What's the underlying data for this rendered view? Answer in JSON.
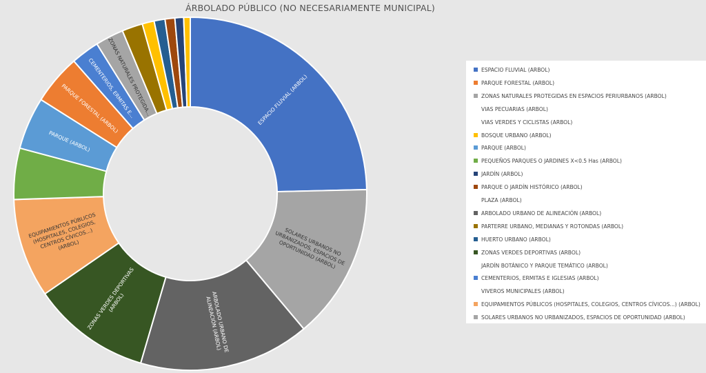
{
  "chart_data": {
    "type": "pie",
    "variant": "donut",
    "title": "ÁRBOLADO PÚBLICO (NO NECESARIAMENTE MUNICIPAL)",
    "legend_position": "right",
    "slices": [
      {
        "name": "ESPACIO FLUVIAL (ARBOL)",
        "value": 24.7,
        "color": "#4472c4",
        "label": "ESPACIO FLUVIAL (ARBOL)",
        "label_color": "#ffffff"
      },
      {
        "name": "SOLARES URBANOS NO URBANIZADOS, ESPACIOS DE OPORTUNIDAD (ARBOL)",
        "value": 14.3,
        "color": "#a5a5a5",
        "label": "SOLARES URBANOS NO URBANIZADOS, ESPACIOS DE OPORTUNIDAD (ARBOL)",
        "label_color": "#333333"
      },
      {
        "name": "ARBOLADO URBANO DE ALINEACIÓN (ARBOL)",
        "value": 15.7,
        "color": "#636363",
        "label": "ARBOLADO URBANO DE ALINEACIÓN (ARBOL)",
        "label_color": "#ffffff"
      },
      {
        "name": "ZONAS VERDES DEPORTIVAS (ARBOL)",
        "value": 10.9,
        "color": "#375623",
        "label": "ZONAS VERDES DEPORTIVAS (ARBOL)",
        "label_color": "#ffffff"
      },
      {
        "name": "EQUIPAMIENTOS PÚBLICOS (HOSPITALES, COLEGIOS, CENTROS CÍVICOS...) (ARBOL)",
        "value": 9.1,
        "color": "#f4a460",
        "label": "EQUIPAMIENTOS PÚBLICOS (HOSPITALES, COLEGIOS, CENTROS CÍVICOS...) (ARBOL)",
        "label_color": "#333333"
      },
      {
        "name": "PEQUEÑOS PARQUES O JARDINES X<0.5 Has (ARBOL)",
        "value": 4.7,
        "color": "#70ad47",
        "label": "",
        "label_color": "#ffffff"
      },
      {
        "name": "PARQUE (ARBOL)",
        "value": 4.8,
        "color": "#5b9bd5",
        "label": "PARQUE (ARBOL)",
        "label_color": "#ffffff"
      },
      {
        "name": "PARQUE FORESTAL (ARBOL)",
        "value": 4.6,
        "color": "#ed7d31",
        "label": "PARQUE FORESTAL (ARBOL)",
        "label_color": "#ffffff"
      },
      {
        "name": "CEMENTERIOS, ERMITAS E IGLESIAS (ARBOL)",
        "value": 2.6,
        "color": "#4a7fd1",
        "label": "CEMENTERIOS, ERMITAS E...",
        "label_color": "#ffffff"
      },
      {
        "name": "ZONAS NATURALES PROTEGIDAS EN ESPACIOS PERIURBANOS (ARBOL)",
        "value": 2.6,
        "color": "#a5a5a5",
        "label": "ZONAS NATURALES PROTEGIDA...",
        "label_color": "#333333"
      },
      {
        "name": "PARTERRE URBANO, MEDIANAS Y ROTONDAS (ARBOL)",
        "value": 1.9,
        "color": "#997300",
        "label": "",
        "label_color": "#ffffff"
      },
      {
        "name": "BOSQUE URBANO (ARBOL)",
        "value": 1.1,
        "color": "#ffc000",
        "label": "",
        "label_color": "#ffffff"
      },
      {
        "name": "HUERTO URBANO (ARBOL)",
        "value": 1.0,
        "color": "#255e91",
        "label": "",
        "label_color": "#ffffff"
      },
      {
        "name": "PARQUE O JARDÍN HISTÓRICO (ARBOL)",
        "value": 0.9,
        "color": "#9e480e",
        "label": "",
        "label_color": "#ffffff"
      },
      {
        "name": "JARDÍN (ARBOL)",
        "value": 0.8,
        "color": "#264478",
        "label": "",
        "label_color": "#ffffff"
      },
      {
        "name": "BOSQUE URBANO (ARBOL)",
        "value": 0.6,
        "color": "#ffc000",
        "label": "",
        "label_color": "#ffffff"
      }
    ],
    "legend": [
      {
        "label": "ESPACIO FLUVIAL (ARBOL)",
        "color": "#4472c4"
      },
      {
        "label": "PARQUE FORESTAL (ARBOL)",
        "color": "#ed7d31"
      },
      {
        "label": "ZONAS NATURALES PROTEGIDAS EN ESPACIOS PERIURBANOS (ARBOL)",
        "color": "#a5a5a5"
      },
      {
        "label": "VIAS PECUARIAS (ARBOL)",
        "color": ""
      },
      {
        "label": "VIAS VERDES Y CICLISTAS (ARBOL)",
        "color": ""
      },
      {
        "label": "BOSQUE URBANO (ARBOL)",
        "color": "#ffc000"
      },
      {
        "label": "PARQUE (ARBOL)",
        "color": "#5b9bd5"
      },
      {
        "label": "PEQUEÑOS PARQUES O JARDINES X<0.5 Has (ARBOL)",
        "color": "#70ad47"
      },
      {
        "label": "JARDÍN (ARBOL)",
        "color": "#264478"
      },
      {
        "label": "PARQUE O JARDÍN HISTÓRICO (ARBOL)",
        "color": "#9e480e"
      },
      {
        "label": "PLAZA (ARBOL)",
        "color": ""
      },
      {
        "label": "ARBOLADO URBANO DE ALINEACIÓN (ARBOL)",
        "color": "#636363"
      },
      {
        "label": "PARTERRE URBANO, MEDIANAS Y ROTONDAS (ARBOL)",
        "color": "#997300"
      },
      {
        "label": "HUERTO URBANO (ARBOL)",
        "color": "#255e91"
      },
      {
        "label": "ZONAS VERDES DEPORTIVAS (ARBOL)",
        "color": "#375623"
      },
      {
        "label": "JARDÍN BOTÁNICO Y PARQUE TEMÁTICO (ARBOL)",
        "color": ""
      },
      {
        "label": "CEMENTERIOS, ERMITAS E IGLESIAS (ARBOL)",
        "color": "#4a7fd1"
      },
      {
        "label": "VIVEROS MUNICIPALES (ARBOL)",
        "color": ""
      },
      {
        "label": "EQUIPAMIENTOS PÚBLICOS (HOSPITALES, COLEGIOS, CENTROS CÍVICOS...) (ARBOL)",
        "color": "#f4a460"
      },
      {
        "label": "SOLARES URBANOS NO URBANIZADOS, ESPACIOS DE OPORTUNIDAD (ARBOL)",
        "color": "#a5a5a5"
      }
    ]
  }
}
